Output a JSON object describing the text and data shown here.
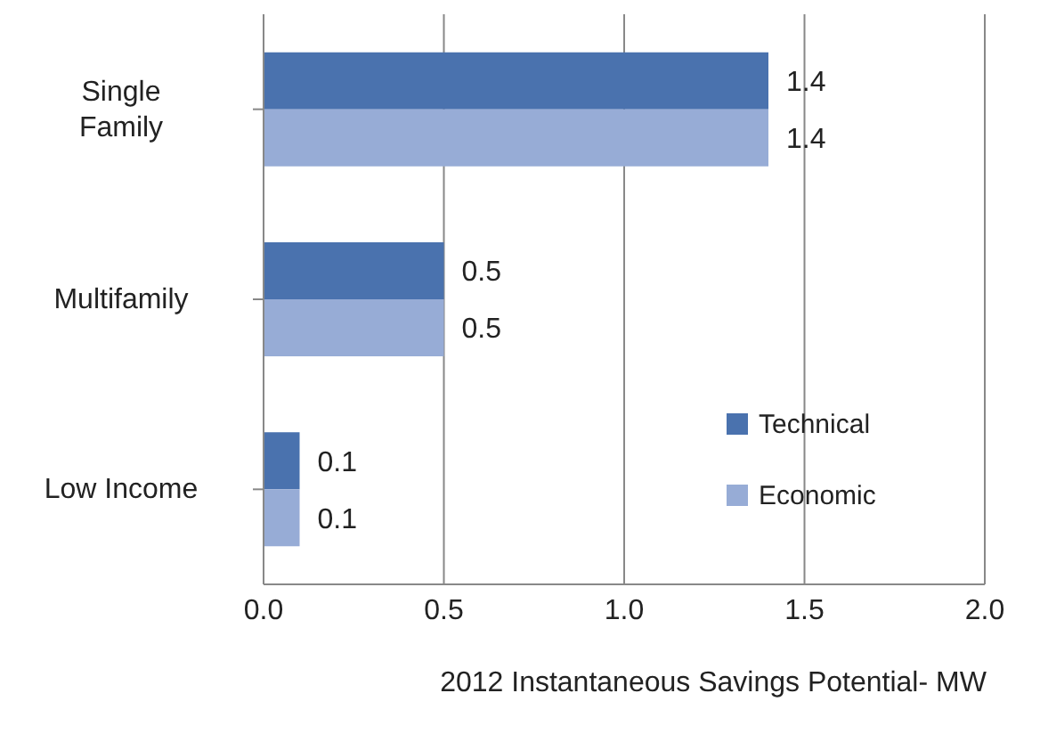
{
  "chart_data": {
    "type": "bar",
    "orientation": "horizontal",
    "xlabel": "2012 Instantaneous Savings Potential- MW",
    "categories": [
      "Single Family",
      "Multifamily",
      "Low Income"
    ],
    "series": [
      {
        "name": "Technical",
        "color": "#4a72ae",
        "values": [
          1.4,
          0.5,
          0.1
        ]
      },
      {
        "name": "Economic",
        "color": "#97acd6",
        "values": [
          1.4,
          0.5,
          0.1
        ]
      }
    ],
    "xlim": [
      0,
      2
    ],
    "xticks": [
      {
        "value": 0,
        "label": "0.0"
      },
      {
        "value": 0.5,
        "label": "0.5"
      },
      {
        "value": 1,
        "label": "1.0"
      },
      {
        "value": 1.5,
        "label": "1.5"
      },
      {
        "value": 2,
        "label": "2.0"
      }
    ],
    "grid": "x",
    "legend": "right",
    "data_labels": true
  }
}
